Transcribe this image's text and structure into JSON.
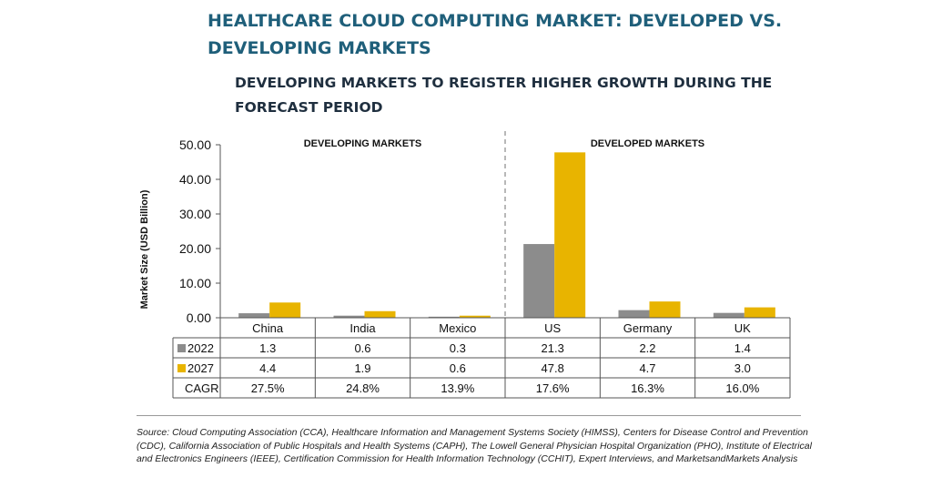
{
  "title": "HEALTHCARE CLOUD COMPUTING MARKET: DEVELOPED VS. DEVELOPING MARKETS",
  "subtitle": "DEVELOPING MARKETS TO REGISTER HIGHER GROWTH DURING THE FORECAST PERIOD",
  "source": "Source: Cloud Computing Association (CCA), Healthcare Information and Management Systems Society (HIMSS), Centers for Disease Control and Prevention (CDC), California Association of Public Hospitals and Health Systems (CAPH), The Lowell General Physician Hospital Organization (PHO), Institute of Electrical and Electronics Engineers (IEEE), Certification Commission for Health Information Technology (CCHIT), Expert Interviews, and MarketsandMarkets Analysis",
  "colors": {
    "title": "#1f5f7a",
    "s2022": "#8c8c8c",
    "s2027": "#e8b400",
    "divider": "#888888"
  },
  "chart_data": {
    "type": "bar",
    "title": "HEALTHCARE CLOUD COMPUTING MARKET: DEVELOPED VS. DEVELOPING MARKETS",
    "subtitle": "DEVELOPING MARKETS TO REGISTER HIGHER GROWTH DURING THE FORECAST PERIOD",
    "ylabel": "Market Size (USD Billion)",
    "xlabel": "",
    "ylim": [
      0,
      50
    ],
    "yticks": [
      "0.00",
      "10.00",
      "20.00",
      "30.00",
      "40.00",
      "50.00"
    ],
    "grid": false,
    "categories": [
      "China",
      "India",
      "Mexico",
      "US",
      "Germany",
      "UK"
    ],
    "regions": [
      {
        "label": "DEVELOPING MARKETS",
        "categories": [
          "China",
          "India",
          "Mexico"
        ]
      },
      {
        "label": "DEVELOPED MARKETS",
        "categories": [
          "US",
          "Germany",
          "UK"
        ]
      }
    ],
    "series": [
      {
        "name": "2022",
        "values": [
          1.3,
          0.6,
          0.3,
          21.3,
          2.2,
          1.4
        ],
        "labels": [
          "1.3",
          "0.6",
          "0.3",
          "21.3",
          "2.2",
          "1.4"
        ]
      },
      {
        "name": "2027",
        "values": [
          4.4,
          1.9,
          0.6,
          47.8,
          4.7,
          3.0
        ],
        "labels": [
          "4.4",
          "1.9",
          "0.6",
          "47.8",
          "4.7",
          "3.0"
        ]
      }
    ],
    "table_rows": [
      {
        "name": "CAGR",
        "values": [
          "27.5%",
          "24.8%",
          "13.9%",
          "17.6%",
          "16.3%",
          "16.0%"
        ]
      }
    ],
    "legend": "table-left"
  }
}
